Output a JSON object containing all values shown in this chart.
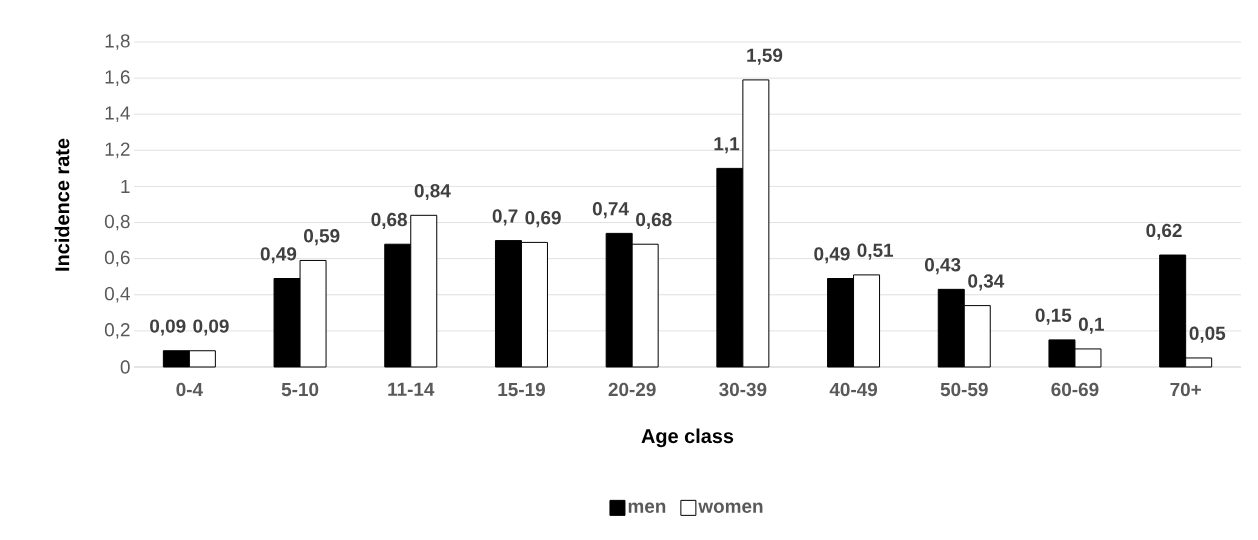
{
  "chart_data": {
    "type": "bar",
    "xlabel": "Age class",
    "ylabel": "Incidence rate",
    "categories": [
      "0-4",
      "5-10",
      "11-14",
      "15-19",
      "20-29",
      "30-39",
      "40-49",
      "50-59",
      "60-69",
      "70+"
    ],
    "series": [
      {
        "name": "men",
        "color": "#000000",
        "values": [
          0.09,
          0.49,
          0.68,
          0.7,
          0.74,
          1.1,
          0.49,
          0.43,
          0.15,
          0.62
        ],
        "value_labels": [
          "0,09",
          "0,49",
          "0,68",
          "0,7",
          "0,74",
          "1,1",
          "0,49",
          "0,43",
          "0,15",
          "0,62"
        ]
      },
      {
        "name": "women",
        "color": "#ffffff",
        "values": [
          0.09,
          0.59,
          0.84,
          0.69,
          0.68,
          1.59,
          0.51,
          0.34,
          0.1,
          0.05
        ],
        "value_labels": [
          "0,09",
          "0,59",
          "0,84",
          "0,69",
          "0,68",
          "1,59",
          "0,51",
          "0,34",
          "0,1",
          "0,05"
        ]
      }
    ],
    "ylim": [
      0,
      1.8
    ],
    "yticks": [
      0,
      {
        "value": 0.2,
        "label": "0,2"
      },
      {
        "value": 0.4,
        "label": "0,4"
      },
      {
        "value": 0.6,
        "label": "0,6"
      },
      {
        "value": 0.8,
        "label": "0,8"
      },
      1,
      {
        "value": 1.2,
        "label": "1,2"
      },
      {
        "value": 1.4,
        "label": "1,4"
      },
      {
        "value": 1.6,
        "label": "1,6"
      },
      {
        "value": 1.8,
        "label": "1,8"
      }
    ],
    "grid": "y",
    "legend": "bottom"
  }
}
